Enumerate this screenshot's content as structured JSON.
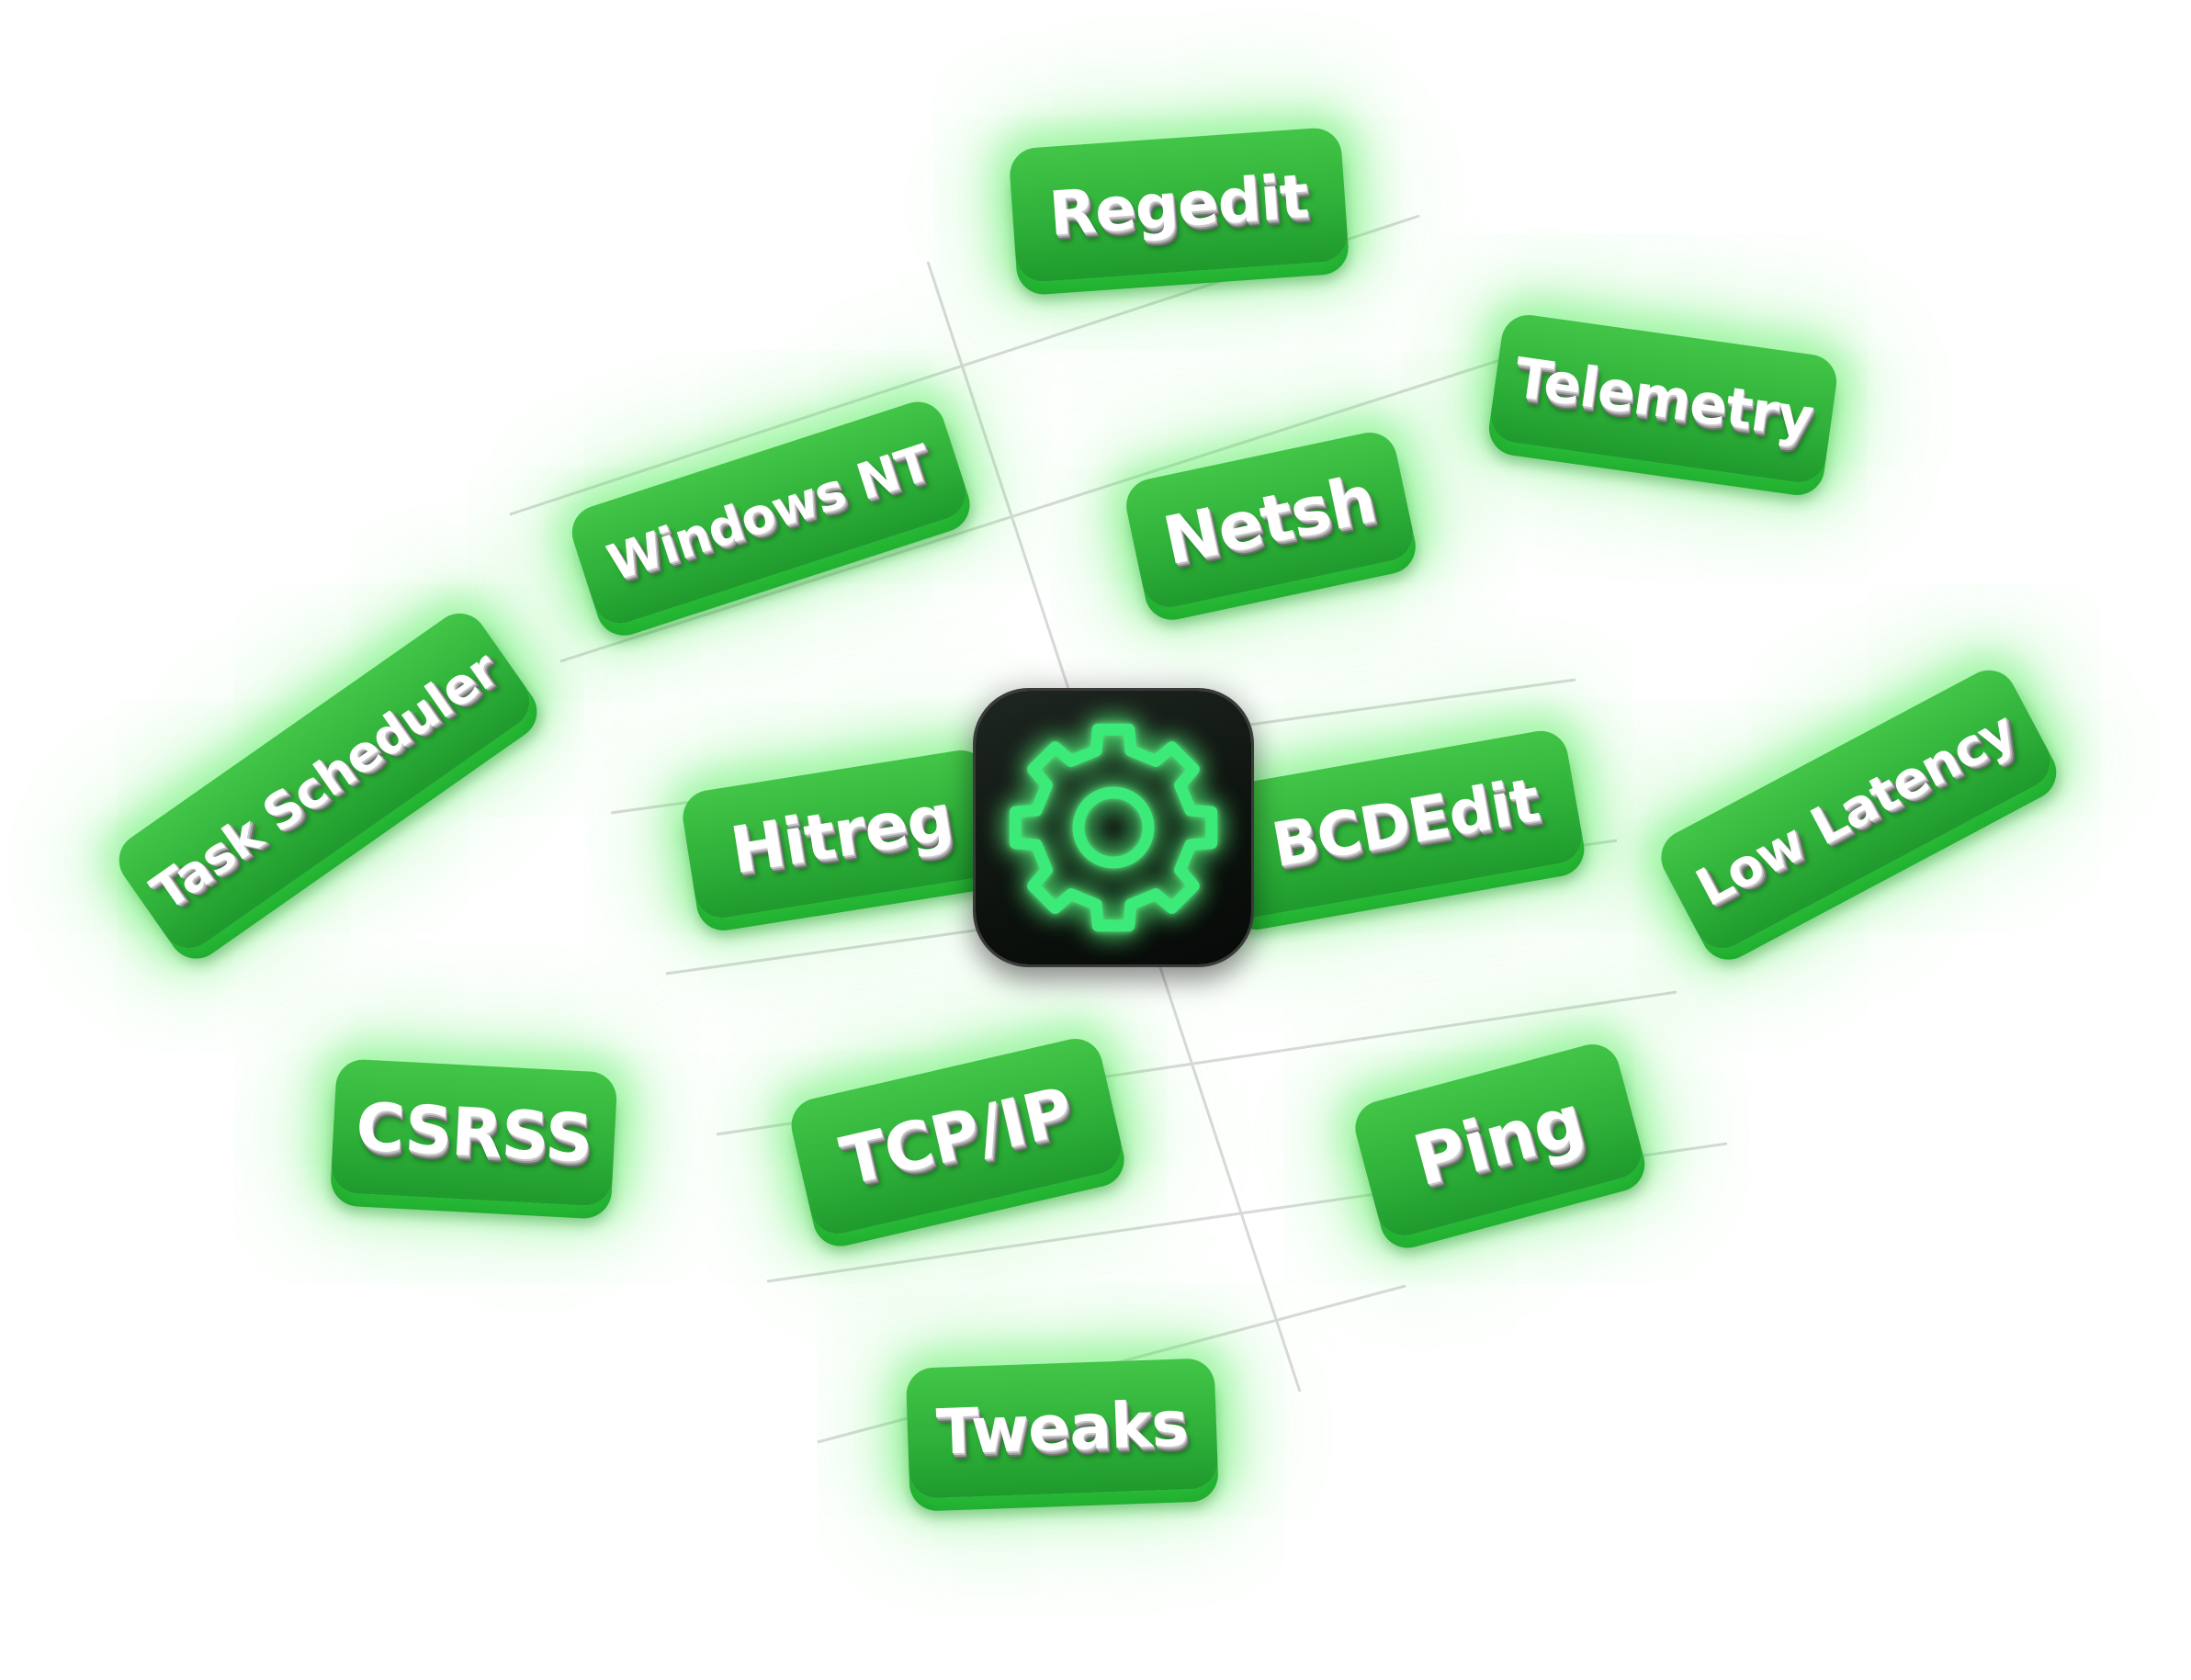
{
  "tags": {
    "regedit": "Regedit",
    "telemetry": "Telemetry",
    "windows_nt": "Windows NT",
    "netsh": "Netsh",
    "task_scheduler": "Task Scheduler",
    "hitreg": "Hitreg",
    "bcdedit": "BCDEdit",
    "low_latency": "Low Latency",
    "csrss": "CSRSS",
    "tcp_ip": "TCP/IP",
    "ping": "Ping",
    "tweaks": "Tweaks"
  },
  "icons": {
    "center": "gear-icon"
  },
  "colors": {
    "tag_green": "#2fb13a",
    "glow_green": "#3ceb46",
    "icon_background": "#0d120e",
    "gear_green": "#3bea78"
  }
}
